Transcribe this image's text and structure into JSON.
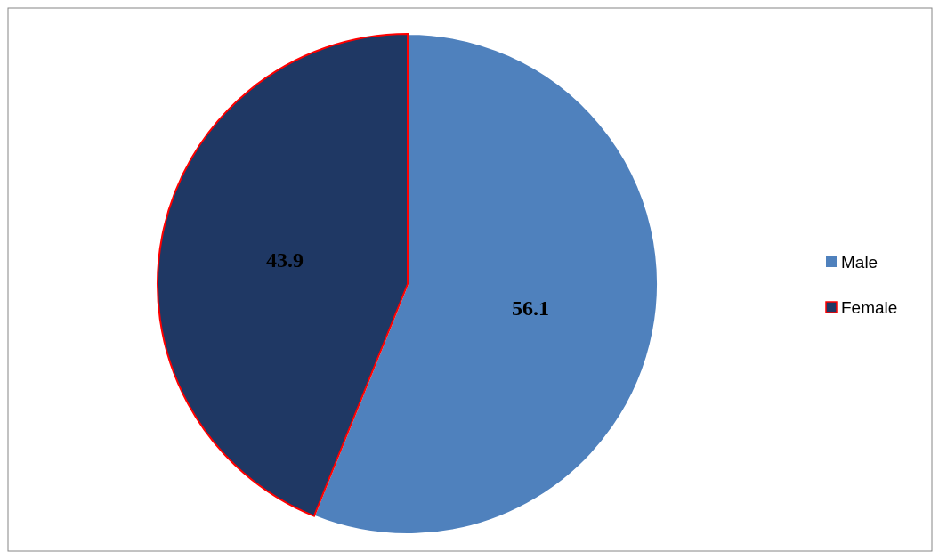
{
  "chart_data": {
    "type": "pie",
    "categories": [
      "Male",
      "Female"
    ],
    "values": [
      56.1,
      43.9
    ],
    "colors": [
      "#4f81bd",
      "#1f3864"
    ],
    "data_labels": true,
    "legend": "right"
  }
}
